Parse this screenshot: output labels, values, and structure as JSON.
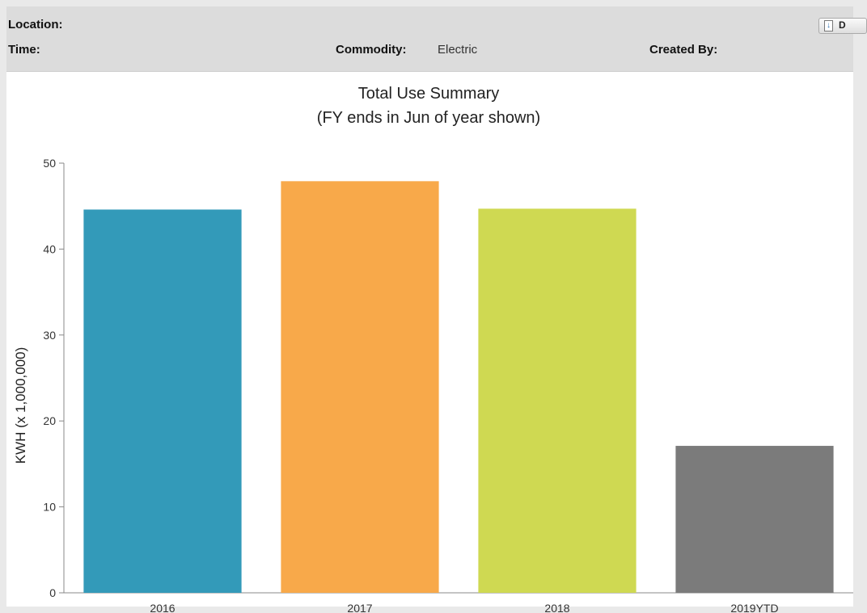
{
  "header": {
    "location_label": "Location:",
    "location_value": "",
    "time_label": "Time:",
    "time_value": "",
    "commodity_label": "Commodity:",
    "commodity_value": "Electric",
    "created_by_label": "Created By:",
    "created_by_value": "",
    "download_icon": "download-icon",
    "download_label": "D"
  },
  "chart_data": {
    "type": "bar",
    "title": "Total Use Summary",
    "subtitle": "(FY ends in Jun of year shown)",
    "xlabel": "",
    "ylabel": "KWH (x 1,000,000)",
    "categories": [
      "2016",
      "2017",
      "2018",
      "2019YTD"
    ],
    "values": [
      44.6,
      47.9,
      44.7,
      17.1
    ],
    "colors": [
      "#339ab9",
      "#f8a94a",
      "#cfd952",
      "#7b7b7b"
    ],
    "ylim": [
      0,
      50
    ],
    "yticks": [
      0,
      10,
      20,
      30,
      40,
      50
    ],
    "grid": false,
    "legend": "none"
  }
}
